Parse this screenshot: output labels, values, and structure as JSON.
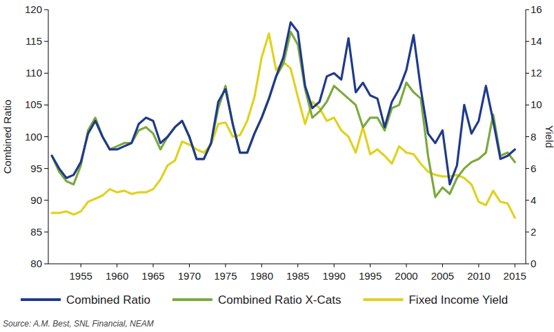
{
  "chart_data": {
    "type": "line",
    "y_label": "Combined Ratio",
    "y2_label": "Yield",
    "source": "Source: A.M. Best, SNL Financial, NEAM",
    "legend": "bottom",
    "grid": false,
    "x": [
      1951,
      1952,
      1953,
      1954,
      1955,
      1956,
      1957,
      1958,
      1959,
      1960,
      1961,
      1962,
      1963,
      1964,
      1965,
      1966,
      1967,
      1968,
      1969,
      1970,
      1971,
      1972,
      1973,
      1974,
      1975,
      1976,
      1977,
      1978,
      1979,
      1980,
      1981,
      1982,
      1983,
      1984,
      1985,
      1986,
      1987,
      1988,
      1989,
      1990,
      1991,
      1992,
      1993,
      1994,
      1995,
      1996,
      1997,
      1998,
      1999,
      2000,
      2001,
      2002,
      2003,
      2004,
      2005,
      2006,
      2007,
      2008,
      2009,
      2010,
      2011,
      2012,
      2013,
      2014,
      2015
    ],
    "xlim": [
      1950.5,
      2016.5
    ],
    "xticks": [
      1955,
      1960,
      1965,
      1970,
      1975,
      1980,
      1985,
      1990,
      1995,
      2000,
      2005,
      2010,
      2015
    ],
    "ylim": [
      80,
      120
    ],
    "yticks": [
      80,
      85,
      90,
      95,
      100,
      105,
      110,
      115,
      120
    ],
    "y2lim": [
      0,
      16
    ],
    "y2ticks": [
      0,
      2,
      4,
      6,
      8,
      10,
      12,
      14,
      16
    ],
    "series": [
      {
        "name": "Combined Ratio",
        "color": "#1f3a8c",
        "values": [
          97,
          95,
          93.5,
          94,
          96,
          100.5,
          102.5,
          100,
          98,
          98,
          98.5,
          99,
          102,
          103,
          102.5,
          99,
          100,
          101.5,
          102.5,
          100,
          96.5,
          96.5,
          99,
          105.5,
          107.5,
          102,
          97.5,
          97.5,
          100.5,
          103,
          106,
          109.5,
          112.5,
          118,
          116.5,
          108,
          104.5,
          105.5,
          109.5,
          110,
          109,
          115.5,
          107,
          108.5,
          106.5,
          106,
          101.5,
          105.5,
          107.5,
          110.5,
          116,
          107.5,
          100.5,
          99,
          101,
          92.5,
          95.5,
          105,
          100.5,
          102.5,
          108,
          102.5,
          96.5,
          97,
          98
        ]
      },
      {
        "name": "Combined Ratio X-Cats",
        "color": "#7aaa3c",
        "values": [
          97,
          94.5,
          93,
          92.5,
          95.5,
          101,
          103,
          100,
          98,
          98.5,
          99,
          99,
          101,
          101.5,
          100.5,
          98,
          100,
          101.5,
          102.5,
          100,
          96.5,
          96.5,
          99,
          104.5,
          108,
          102,
          97.5,
          97.5,
          100.5,
          103,
          106,
          109.5,
          111.5,
          116.5,
          114.5,
          107.5,
          103,
          104,
          105.5,
          108,
          107,
          106,
          105,
          101.5,
          103,
          103,
          101,
          104.5,
          105,
          108.5,
          107,
          106,
          97,
          90.5,
          92,
          91,
          93.5,
          95,
          96,
          96.5,
          97.5,
          103.5,
          97,
          97.5,
          96
        ]
      },
      {
        "name": "Fixed Income Yield",
        "color": "#e0d21e",
        "axis": "y2",
        "values": [
          3.2,
          3.2,
          3.3,
          3.1,
          3.3,
          3.9,
          4.1,
          4.3,
          4.7,
          4.5,
          4.6,
          4.4,
          4.5,
          4.5,
          4.7,
          5.3,
          6.2,
          6.5,
          7.7,
          7.5,
          7.2,
          7.0,
          7.5,
          8.8,
          8.9,
          8.0,
          8.1,
          9.0,
          10.5,
          13.0,
          14.5,
          12.2,
          12.7,
          12.3,
          10.5,
          8.8,
          10.2,
          9.8,
          9.0,
          9.2,
          8.4,
          8.0,
          7.0,
          8.6,
          6.9,
          7.2,
          6.8,
          6.3,
          7.4,
          7.0,
          6.9,
          6.3,
          5.8,
          5.6,
          5.5,
          5.5,
          5.6,
          5.4,
          5.0,
          3.9,
          3.7,
          4.6,
          3.9,
          3.8,
          2.9
        ]
      }
    ]
  }
}
